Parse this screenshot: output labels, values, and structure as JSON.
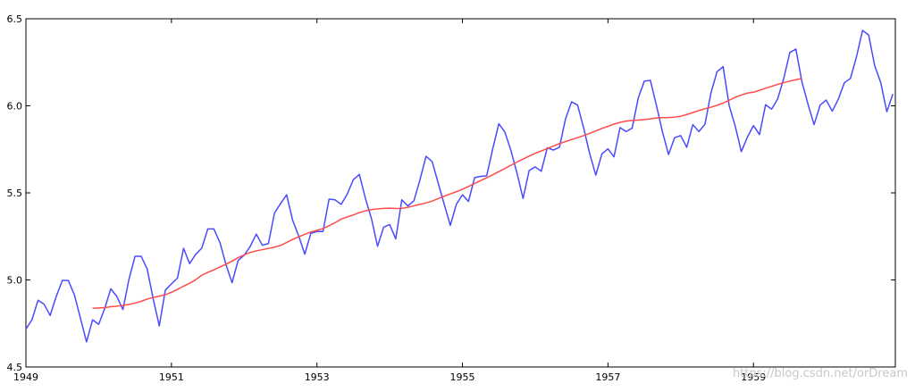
{
  "watermark": "https://blog.csdn.net/orDream",
  "colors": {
    "series_blue": "#4a4aff",
    "series_red": "#ff4a4a",
    "axis": "#000000",
    "background": "#ffffff"
  },
  "chart_data": {
    "type": "line",
    "title": "",
    "xlabel": "",
    "ylabel": "",
    "xlim": [
      1949,
      1960.95
    ],
    "ylim": [
      4.5,
      6.5
    ],
    "grid": false,
    "x_ticks": [
      "1949",
      "1951",
      "1953",
      "1955",
      "1957",
      "1959"
    ],
    "y_ticks": [
      "4.5",
      "5.0",
      "5.5",
      "6.0",
      "6.5"
    ],
    "series": [
      {
        "color": "#4a4aff",
        "start": 1949,
        "step": 0.08333,
        "values": [
          4.718,
          4.771,
          4.883,
          4.86,
          4.796,
          4.905,
          4.997,
          4.997,
          4.913,
          4.779,
          4.644,
          4.771,
          4.745,
          4.836,
          4.949,
          4.905,
          4.83,
          5.004,
          5.136,
          5.136,
          5.063,
          4.89,
          4.736,
          4.942,
          4.977,
          5.011,
          5.182,
          5.094,
          5.147,
          5.182,
          5.293,
          5.293,
          5.215,
          5.088,
          4.984,
          5.112,
          5.142,
          5.193,
          5.263,
          5.199,
          5.209,
          5.384,
          5.438,
          5.489,
          5.342,
          5.252,
          5.148,
          5.268,
          5.278,
          5.278,
          5.464,
          5.46,
          5.434,
          5.493,
          5.576,
          5.606,
          5.468,
          5.352,
          5.193,
          5.303,
          5.318,
          5.236,
          5.46,
          5.425,
          5.455,
          5.576,
          5.71,
          5.68,
          5.557,
          5.434,
          5.313,
          5.434,
          5.489,
          5.451,
          5.587,
          5.595,
          5.598,
          5.753,
          5.897,
          5.849,
          5.743,
          5.613,
          5.468,
          5.628,
          5.649,
          5.624,
          5.759,
          5.746,
          5.762,
          5.924,
          6.023,
          6.004,
          5.872,
          5.724,
          5.602,
          5.724,
          5.753,
          5.707,
          5.875,
          5.852,
          5.872,
          6.045,
          6.142,
          6.146,
          6.002,
          5.849,
          5.72,
          5.817,
          5.829,
          5.762,
          5.892,
          5.852,
          5.894,
          6.075,
          6.196,
          6.225,
          6.001,
          5.883,
          5.737,
          5.82,
          5.886,
          5.835,
          6.006,
          5.981,
          6.04,
          6.157,
          6.306,
          6.326,
          6.138,
          6.009,
          5.892,
          6.004,
          6.033,
          5.969,
          6.038,
          6.133,
          6.157,
          6.282,
          6.433,
          6.407,
          6.23,
          6.133,
          5.966,
          6.068
        ]
      },
      {
        "color": "#ff4a4a",
        "start": 1949.9167,
        "step": 0.08333,
        "values": [
          4.837,
          4.839,
          4.841,
          4.846,
          4.849,
          4.854,
          4.859,
          4.867,
          4.877,
          4.89,
          4.899,
          4.907,
          4.915,
          4.929,
          4.946,
          4.964,
          4.981,
          5.001,
          5.027,
          5.043,
          5.058,
          5.074,
          5.09,
          5.108,
          5.128,
          5.144,
          5.158,
          5.167,
          5.174,
          5.181,
          5.188,
          5.198,
          5.215,
          5.233,
          5.248,
          5.262,
          5.275,
          5.285,
          5.295,
          5.311,
          5.329,
          5.349,
          5.362,
          5.373,
          5.387,
          5.397,
          5.404,
          5.408,
          5.411,
          5.412,
          5.41,
          5.411,
          5.417,
          5.426,
          5.434,
          5.442,
          5.453,
          5.467,
          5.481,
          5.494,
          5.507,
          5.521,
          5.537,
          5.554,
          5.57,
          5.587,
          5.604,
          5.622,
          5.64,
          5.659,
          5.677,
          5.694,
          5.711,
          5.727,
          5.741,
          5.755,
          5.769,
          5.783,
          5.795,
          5.806,
          5.817,
          5.829,
          5.842,
          5.856,
          5.87,
          5.882,
          5.895,
          5.905,
          5.912,
          5.916,
          5.918,
          5.921,
          5.925,
          5.93,
          5.932,
          5.933,
          5.935,
          5.94,
          5.95,
          5.961,
          5.973,
          5.983,
          5.992,
          6.003,
          6.016,
          6.032,
          6.049,
          6.062,
          6.073,
          6.078,
          6.089,
          6.101,
          6.112,
          6.123,
          6.133,
          6.142,
          6.15,
          6.157
        ]
      }
    ]
  }
}
